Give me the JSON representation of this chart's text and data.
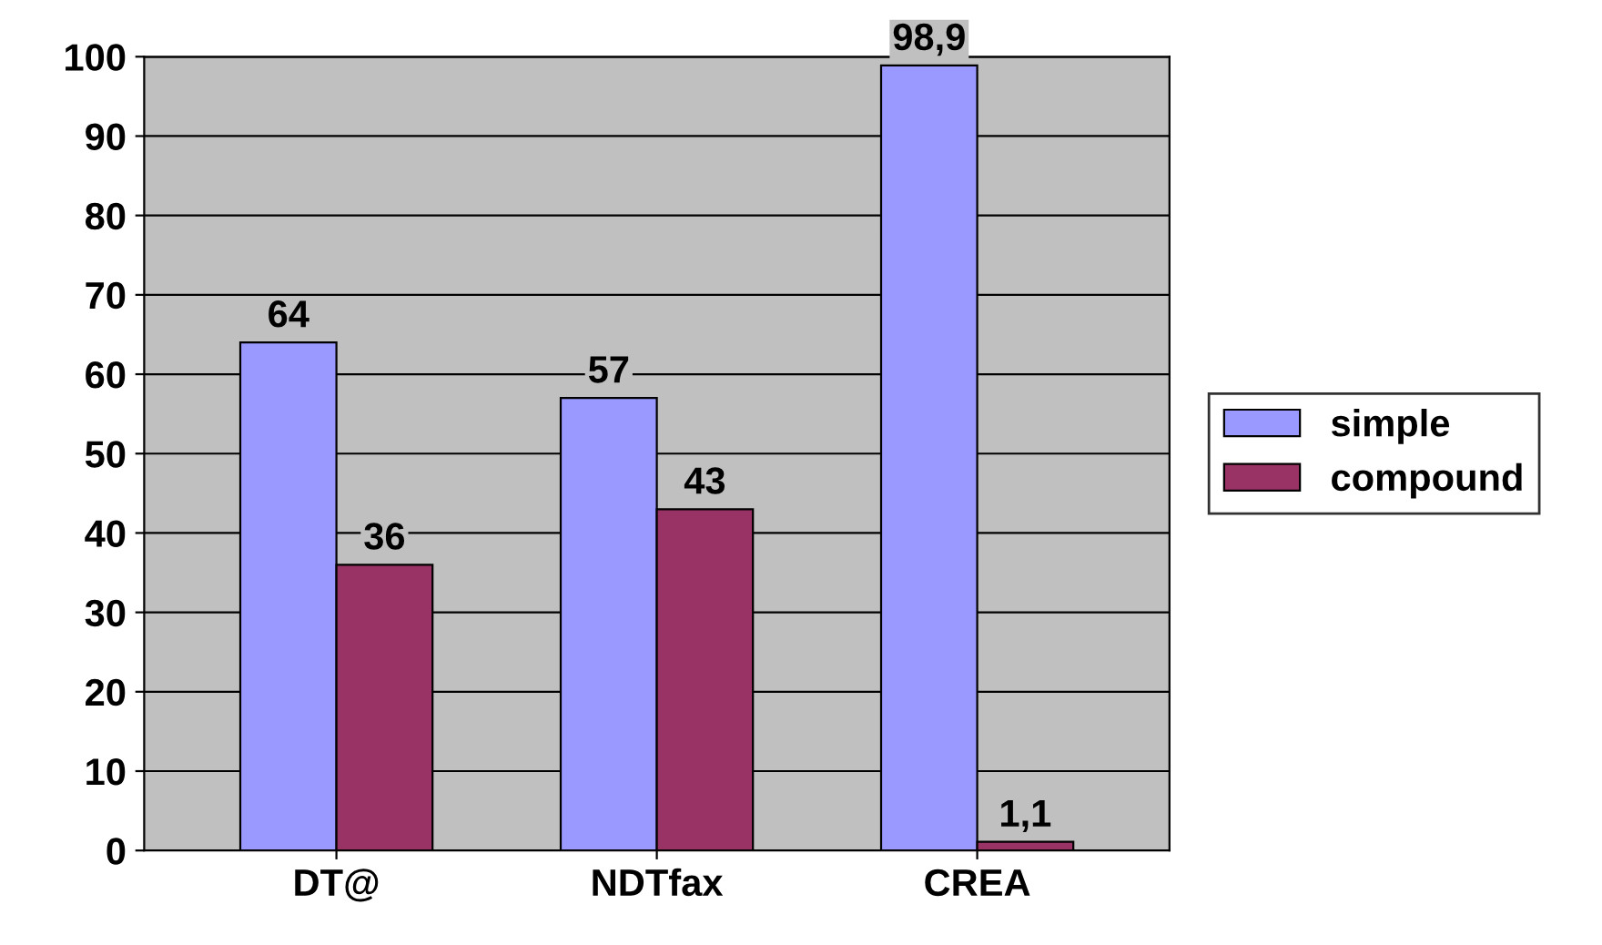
{
  "chart_data": {
    "type": "bar",
    "categories": [
      "DT@",
      "NDTfax",
      "CREA"
    ],
    "series": [
      {
        "name": "simple",
        "color": "#9999ff",
        "values": [
          64,
          57,
          98.9
        ],
        "value_labels": [
          "64",
          "57",
          "98,9"
        ]
      },
      {
        "name": "compound",
        "color": "#993366",
        "values": [
          36,
          43,
          1.1
        ],
        "value_labels": [
          "36",
          "43",
          "1,1"
        ]
      }
    ],
    "ylim": [
      0,
      100
    ],
    "yticks": [
      0,
      10,
      20,
      30,
      40,
      50,
      60,
      70,
      80,
      90,
      100
    ],
    "grid": "y",
    "legend": "right"
  }
}
